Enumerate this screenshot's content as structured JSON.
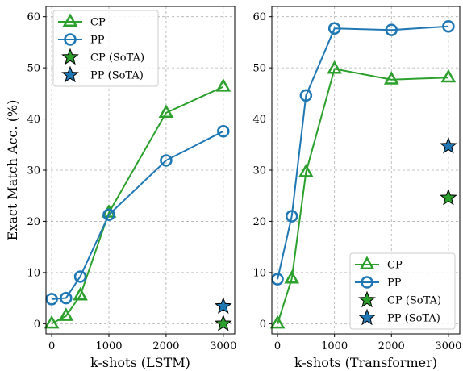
{
  "colors": {
    "CP": "#2ca02c",
    "PP": "#1f77b4"
  },
  "chart_data": [
    {
      "type": "line",
      "xlabel": "k-shots (LSTM)",
      "ylabel": "Exact Match Acc. (%)",
      "xlim": [
        -100,
        3200
      ],
      "ylim": [
        -2,
        62
      ],
      "xticks": [
        0,
        1000,
        2000,
        3000
      ],
      "yticks": [
        0,
        10,
        20,
        30,
        40,
        50,
        60
      ],
      "grid": true,
      "legend_position": "top-left",
      "series": [
        {
          "name": "CP",
          "marker": "triangle",
          "x": [
            0,
            250,
            500,
            1000,
            2000,
            3000
          ],
          "y": [
            0.0,
            1.5,
            5.5,
            21.7,
            41.2,
            46.3
          ]
        },
        {
          "name": "PP",
          "marker": "circle",
          "x": [
            0,
            250,
            500,
            1000,
            2000,
            3000
          ],
          "y": [
            4.8,
            5.0,
            9.2,
            21.3,
            31.9,
            37.6
          ]
        }
      ],
      "sota": [
        {
          "name": "CP (SoTA)",
          "x": 3000,
          "y": 0.0
        },
        {
          "name": "PP (SoTA)",
          "x": 3000,
          "y": 3.4
        }
      ]
    },
    {
      "type": "line",
      "xlabel": "k-shots (Transformer)",
      "ylabel": "",
      "xlim": [
        -100,
        3200
      ],
      "ylim": [
        -2,
        62
      ],
      "xticks": [
        0,
        1000,
        2000,
        3000
      ],
      "yticks": [
        0,
        10,
        20,
        30,
        40,
        50,
        60
      ],
      "grid": true,
      "legend_position": "bottom-right",
      "series": [
        {
          "name": "CP",
          "marker": "triangle",
          "x": [
            0,
            250,
            500,
            1000,
            2000,
            3000
          ],
          "y": [
            0.0,
            8.8,
            29.6,
            49.8,
            47.7,
            48.1
          ]
        },
        {
          "name": "PP",
          "marker": "circle",
          "x": [
            0,
            250,
            500,
            1000,
            2000,
            3000
          ],
          "y": [
            8.7,
            21.0,
            44.6,
            57.7,
            57.4,
            58.1
          ]
        }
      ],
      "sota": [
        {
          "name": "CP (SoTA)",
          "x": 3000,
          "y": 24.6
        },
        {
          "name": "PP (SoTA)",
          "x": 3000,
          "y": 34.7
        }
      ]
    }
  ]
}
